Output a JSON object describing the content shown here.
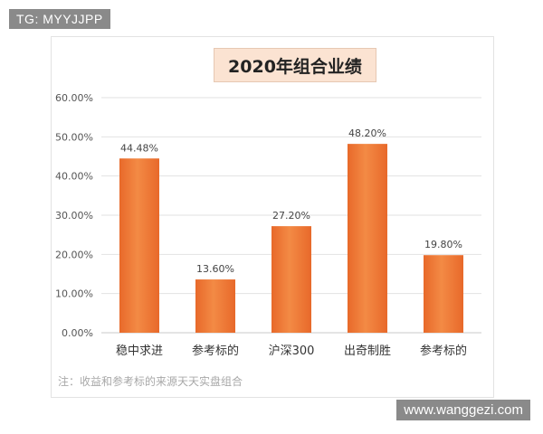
{
  "watermarks": {
    "top": "TG: MYYJJPP",
    "bottom": "www.wanggezi.com"
  },
  "note": "注：收益和参考标的来源天天实盘组合",
  "chart_data": {
    "type": "bar",
    "title": "2020年组合业绩",
    "categories": [
      "稳中求进",
      "参考标的",
      "沪深300",
      "出奇制胜",
      "参考标的"
    ],
    "values": [
      44.48,
      13.6,
      27.2,
      48.2,
      19.8
    ],
    "value_labels": [
      "44.48%",
      "13.60%",
      "27.20%",
      "48.20%",
      "19.80%"
    ],
    "yticks": [
      "0.00%",
      "10.00%",
      "20.00%",
      "30.00%",
      "40.00%",
      "50.00%",
      "60.00%"
    ],
    "ylim": [
      0,
      60
    ],
    "grid": true,
    "bar_color": "#f07a35"
  }
}
